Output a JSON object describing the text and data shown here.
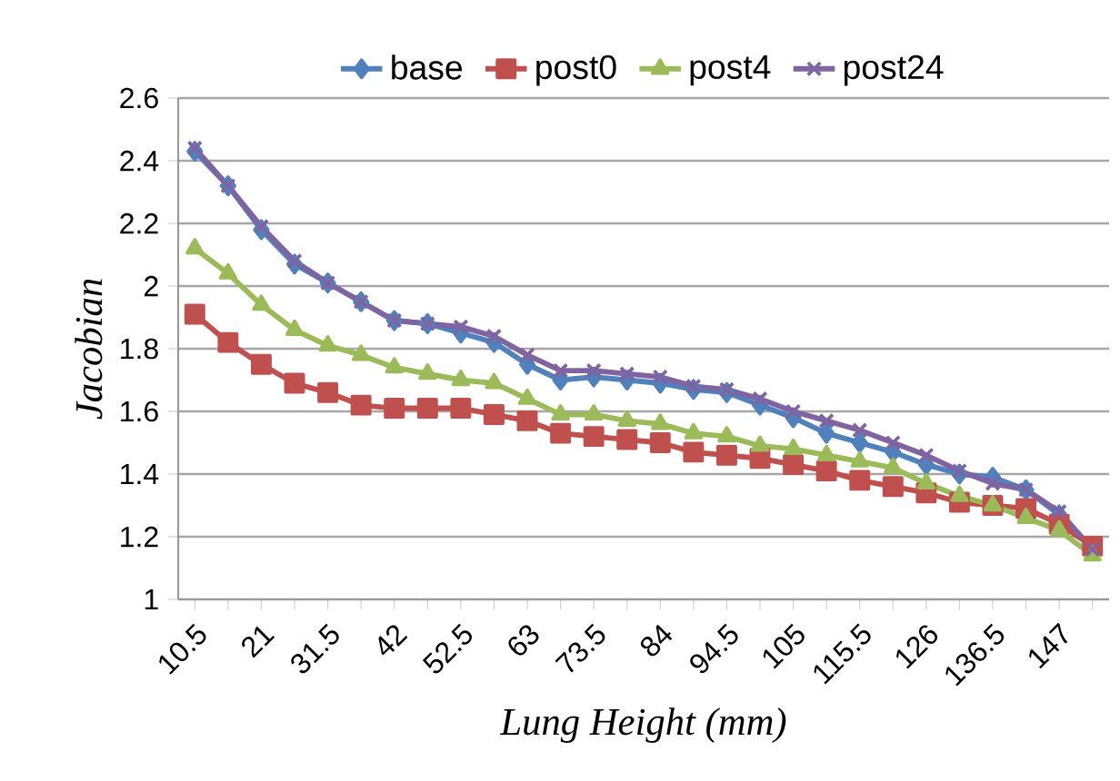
{
  "chart_data": {
    "type": "line",
    "xlabel": "*Lung Height (mm)*",
    "ylabel": "*Jacobian*",
    "categories": [
      "10.5",
      null,
      "21",
      null,
      "31.5",
      null,
      "42",
      null,
      "52.5",
      null,
      "63",
      null,
      "73.5",
      null,
      "84",
      null,
      "94.5",
      null,
      "105",
      null,
      "115.5",
      null,
      "126",
      null,
      "136.5",
      null,
      "147",
      null
    ],
    "series": [
      {
        "name": "base",
        "color": "#4f81bd",
        "marker": "diamond",
        "values": [
          2.43,
          2.32,
          2.18,
          2.07,
          2.01,
          1.95,
          1.89,
          1.88,
          1.85,
          1.82,
          1.75,
          1.7,
          1.71,
          1.7,
          1.69,
          1.67,
          1.66,
          1.62,
          1.58,
          1.53,
          1.5,
          1.47,
          1.43,
          1.4,
          1.39,
          1.35,
          1.27,
          1.16
        ]
      },
      {
        "name": "post0",
        "color": "#c0504d",
        "marker": "square",
        "values": [
          1.91,
          1.82,
          1.75,
          1.69,
          1.66,
          1.62,
          1.61,
          1.61,
          1.61,
          1.59,
          1.57,
          1.53,
          1.52,
          1.51,
          1.5,
          1.47,
          1.46,
          1.45,
          1.43,
          1.41,
          1.38,
          1.36,
          1.34,
          1.31,
          1.3,
          1.29,
          1.24,
          1.17
        ]
      },
      {
        "name": "post4",
        "color": "#9bbb59",
        "marker": "triangle",
        "values": [
          2.12,
          2.04,
          1.94,
          1.86,
          1.81,
          1.78,
          1.74,
          1.72,
          1.7,
          1.69,
          1.64,
          1.59,
          1.59,
          1.57,
          1.56,
          1.53,
          1.52,
          1.49,
          1.48,
          1.46,
          1.44,
          1.42,
          1.37,
          1.33,
          1.3,
          1.26,
          1.22,
          1.14
        ]
      },
      {
        "name": "post24",
        "color": "#8064a2",
        "marker": "cross",
        "values": [
          2.44,
          2.32,
          2.19,
          2.08,
          2.01,
          1.95,
          1.89,
          1.88,
          1.87,
          1.84,
          1.78,
          1.73,
          1.73,
          1.72,
          1.71,
          1.68,
          1.67,
          1.64,
          1.6,
          1.57,
          1.54,
          1.5,
          1.46,
          1.41,
          1.37,
          1.35,
          1.28,
          1.16
        ]
      }
    ],
    "ylim": [
      1,
      2.6
    ],
    "yticks": [
      1,
      1.2,
      1.4,
      1.6,
      1.8,
      2,
      2.2,
      2.4,
      2.6
    ],
    "grid": "y",
    "legend": "top",
    "line_style": "solid"
  }
}
